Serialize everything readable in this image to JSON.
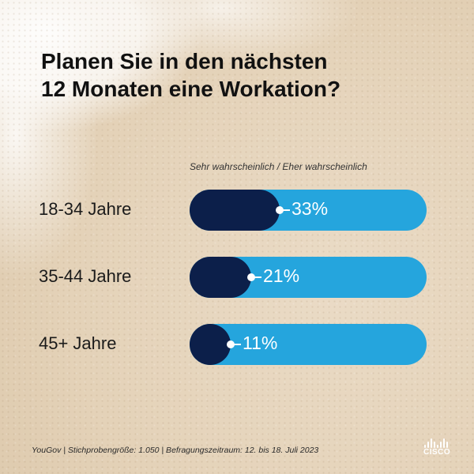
{
  "title_lines": [
    "Planen Sie in den nächsten",
    "12 Monaten eine Workation?"
  ],
  "chart_data": {
    "type": "bar",
    "title": "Planen Sie in den nächsten 12 Monaten eine Workation?",
    "subtitle": "Sehr wahrscheinlich / Eher wahrscheinlich",
    "categories": [
      "18-34 Jahre",
      "35-44 Jahre",
      "45+ Jahre"
    ],
    "values": [
      33,
      21,
      11
    ],
    "value_labels": [
      "33%",
      "21%",
      "11%"
    ],
    "unit": "%",
    "ylim": [
      0,
      100
    ],
    "orientation": "horizontal",
    "colors": {
      "fill": "#0c1f4a",
      "track": "#25a5dd",
      "label": "#ffffff"
    }
  },
  "source": "YouGov | Stichprobengröße: 1.050 | Befragungszeitraum: 12. bis 18. Juli 2023",
  "logo": {
    "text": "CISCO",
    "icon": "cisco-logo-icon"
  }
}
